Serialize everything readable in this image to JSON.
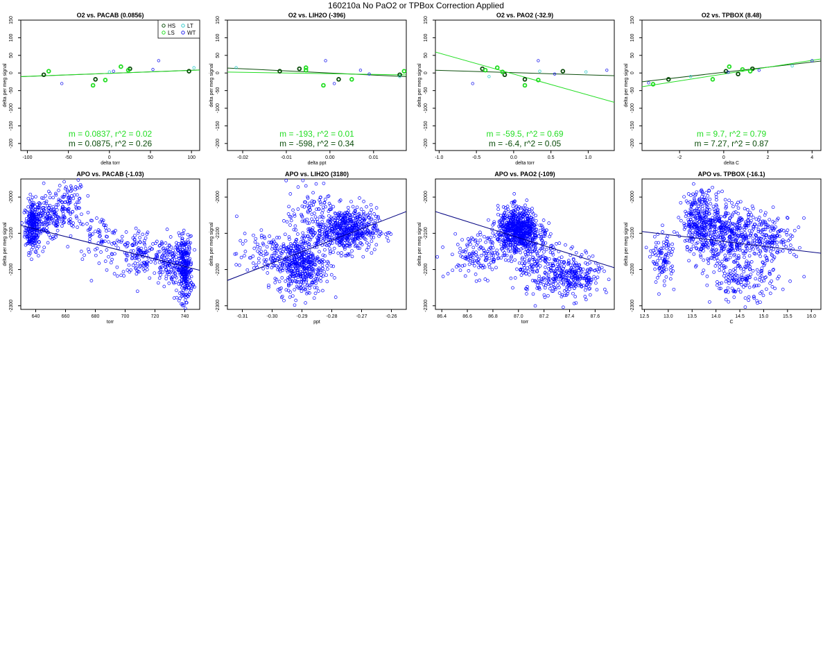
{
  "page_title": "160210a   No PaO2 or TPBox Correction Applied",
  "colors": {
    "HS": "#0b4d0b",
    "LS": "#22dd22",
    "LT": "#33cccc",
    "WT": "#2222ee",
    "fit_overall": "#0b4d0b",
    "fit_ls": "#22dd22",
    "apo_points": "#0000ff",
    "apo_fit": "#000080"
  },
  "legend": [
    {
      "label": "HS",
      "color": "#0b4d0b"
    },
    {
      "label": "LT",
      "color": "#33cccc"
    },
    {
      "label": "LS",
      "color": "#22dd22"
    },
    {
      "label": "WT",
      "color": "#2222ee"
    }
  ],
  "chart_data": [
    {
      "type": "scatter",
      "title": "O2 vs. PACAB (0.0856)",
      "xlabel": "delta torr",
      "ylabel": "delta per meg signal",
      "xlim": [
        -108,
        110
      ],
      "ylim": [
        -220,
        150
      ],
      "xticks": [
        -100,
        -50,
        0,
        50,
        100
      ],
      "yticks": [
        -200,
        -150,
        -100,
        -50,
        0,
        50,
        100,
        150
      ],
      "xtick_labels": [
        "-100",
        "-50",
        "0",
        "50",
        "100"
      ],
      "ytick_labels": [
        "-200",
        "-150",
        "-100",
        "-50",
        "0",
        "50",
        "100",
        "150"
      ],
      "legend_position": "top-right",
      "groups": [
        {
          "name": "HS",
          "points": [
            [
              -80,
              -5
            ],
            [
              -17,
              -18
            ],
            [
              25,
              12
            ],
            [
              97,
              5
            ]
          ]
        },
        {
          "name": "LS",
          "points": [
            [
              -74,
              5
            ],
            [
              -20,
              -35
            ],
            [
              -5,
              -20
            ],
            [
              14,
              18
            ],
            [
              23,
              8
            ]
          ]
        },
        {
          "name": "LT",
          "points": [
            [
              0,
              3
            ],
            [
              103,
              15
            ]
          ]
        },
        {
          "name": "WT",
          "points": [
            [
              -58,
              -30
            ],
            [
              53,
              10
            ],
            [
              60,
              35
            ],
            [
              5,
              5
            ]
          ]
        }
      ],
      "fits": [
        {
          "name": "HS",
          "slope": 0.0875,
          "intercept": -1
        },
        {
          "name": "LS",
          "slope": 0.0837,
          "intercept": -1
        }
      ],
      "annotations": [
        {
          "text": "m = 0.0837, r^2 = 0.02",
          "color": "#22dd22"
        },
        {
          "text": "m = 0.0875, r^2 = 0.26",
          "color": "#0b4d0b"
        }
      ]
    },
    {
      "type": "scatter",
      "title": "O2 vs. LIH2O (-396)",
      "xlabel": "delta ppt",
      "ylabel": "delta per meg signal",
      "xlim": [
        -0.0235,
        0.0175
      ],
      "ylim": [
        -220,
        150
      ],
      "xticks": [
        -0.02,
        -0.01,
        0.0,
        0.01
      ],
      "yticks": [
        -200,
        -150,
        -100,
        -50,
        0,
        50,
        100,
        150
      ],
      "xtick_labels": [
        "-0.02",
        "-0.01",
        "0.00",
        "0.01"
      ],
      "ytick_labels": [
        "-200",
        "-150",
        "-100",
        "-50",
        "0",
        "50",
        "100",
        "150"
      ],
      "groups": [
        {
          "name": "HS",
          "points": [
            [
              -0.0115,
              5
            ],
            [
              -0.007,
              12
            ],
            [
              0.002,
              -18
            ],
            [
              0.016,
              -5
            ]
          ]
        },
        {
          "name": "LS",
          "points": [
            [
              -0.0055,
              15
            ],
            [
              -0.0055,
              8
            ],
            [
              -0.0015,
              -35
            ],
            [
              0.005,
              -18
            ],
            [
              0.017,
              5
            ]
          ]
        },
        {
          "name": "LT",
          "points": [
            [
              -0.0215,
              15
            ],
            [
              0.016,
              -10
            ]
          ]
        },
        {
          "name": "WT",
          "points": [
            [
              -0.001,
              35
            ],
            [
              0.001,
              -30
            ],
            [
              0.007,
              8
            ],
            [
              0.009,
              -3
            ]
          ]
        }
      ],
      "fits": [
        {
          "name": "HS",
          "slope": -598,
          "intercept": 0
        },
        {
          "name": "LS",
          "slope": -193,
          "intercept": -2
        }
      ],
      "annotations": [
        {
          "text": "m = -193, r^2 = 0.01",
          "color": "#22dd22"
        },
        {
          "text": "m = -598, r^2 = 0.34",
          "color": "#0b4d0b"
        }
      ]
    },
    {
      "type": "scatter",
      "title": "O2 vs. PAO2 (-32.9)",
      "xlabel": "delta torr",
      "ylabel": "delta per meg signal",
      "xlim": [
        -1.05,
        1.35
      ],
      "ylim": [
        -220,
        150
      ],
      "xticks": [
        -1.0,
        -0.5,
        0.0,
        0.5,
        1.0
      ],
      "yticks": [
        -200,
        -150,
        -100,
        -50,
        0,
        50,
        100,
        150
      ],
      "xtick_labels": [
        "-1.0",
        "-0.5",
        "0.0",
        "0.5",
        "1.0"
      ],
      "ytick_labels": [
        "-200",
        "-150",
        "-100",
        "-50",
        "0",
        "50",
        "100",
        "150"
      ],
      "groups": [
        {
          "name": "HS",
          "points": [
            [
              -0.42,
              12
            ],
            [
              -0.12,
              -5
            ],
            [
              0.15,
              -18
            ],
            [
              0.66,
              5
            ]
          ]
        },
        {
          "name": "LS",
          "points": [
            [
              -0.38,
              8
            ],
            [
              -0.22,
              15
            ],
            [
              -0.15,
              3
            ],
            [
              0.15,
              -35
            ],
            [
              0.33,
              -20
            ]
          ]
        },
        {
          "name": "LT",
          "points": [
            [
              -0.33,
              -10
            ],
            [
              0.35,
              5
            ],
            [
              0.97,
              3
            ]
          ]
        },
        {
          "name": "WT",
          "points": [
            [
              -0.55,
              -30
            ],
            [
              0.33,
              35
            ],
            [
              0.55,
              -3
            ],
            [
              1.25,
              8
            ]
          ]
        }
      ],
      "fits": [
        {
          "name": "HS",
          "slope": -6.4,
          "intercept": 1
        },
        {
          "name": "LS",
          "slope": -59.5,
          "intercept": -3
        }
      ],
      "annotations": [
        {
          "text": "m = -59.5, r^2 = 0.69",
          "color": "#22dd22"
        },
        {
          "text": "m = -6.4, r^2 = 0.05",
          "color": "#0b4d0b"
        }
      ]
    },
    {
      "type": "scatter",
      "title": "O2 vs. TPBOX (8.48)",
      "xlabel": "delta C",
      "ylabel": "delta per meg signal",
      "xlim": [
        -3.7,
        4.4
      ],
      "ylim": [
        -220,
        150
      ],
      "xticks": [
        -2,
        0,
        2,
        4
      ],
      "yticks": [
        -200,
        -150,
        -100,
        -50,
        0,
        50,
        100,
        150
      ],
      "xtick_labels": [
        "-2",
        "0",
        "2",
        "4"
      ],
      "ytick_labels": [
        "-200",
        "-150",
        "-100",
        "-50",
        "0",
        "50",
        "100",
        "150"
      ],
      "groups": [
        {
          "name": "HS",
          "points": [
            [
              -2.5,
              -18
            ],
            [
              0.1,
              5
            ],
            [
              0.65,
              -3
            ],
            [
              1.3,
              12
            ]
          ]
        },
        {
          "name": "LS",
          "points": [
            [
              -3.2,
              -32
            ],
            [
              -0.5,
              -18
            ],
            [
              0.25,
              18
            ],
            [
              0.85,
              10
            ],
            [
              1.2,
              5
            ]
          ]
        },
        {
          "name": "LT",
          "points": [
            [
              -1.5,
              -10
            ],
            [
              3.1,
              20
            ]
          ]
        },
        {
          "name": "WT",
          "points": [
            [
              -3.4,
              -28
            ],
            [
              1.6,
              8
            ],
            [
              4.0,
              35
            ],
            [
              0.2,
              2
            ]
          ]
        }
      ],
      "fits": [
        {
          "name": "HS",
          "slope": 7.27,
          "intercept": 2
        },
        {
          "name": "LS",
          "slope": 9.7,
          "intercept": -3
        }
      ],
      "annotations": [
        {
          "text": "m = 9.7, r^2 = 0.79",
          "color": "#22dd22"
        },
        {
          "text": "m = 7.27, r^2 = 0.87",
          "color": "#0b4d0b"
        }
      ]
    },
    {
      "type": "scatter",
      "title": "APO vs. PACAB (-1.03)",
      "xlabel": "torr",
      "ylabel": "delta per meg signal",
      "xlim": [
        630,
        750
      ],
      "ylim": [
        -2310,
        -1950
      ],
      "xticks": [
        640,
        660,
        680,
        700,
        720,
        740
      ],
      "yticks": [
        -2300,
        -2200,
        -2100,
        -2000
      ],
      "xtick_labels": [
        "640",
        "660",
        "680",
        "700",
        "720",
        "740"
      ],
      "ytick_labels": [
        "-2300",
        "-2200",
        "-2100",
        "-2000"
      ],
      "point_clusters": [
        {
          "cx": 638,
          "cy": -2080,
          "sx": 2.5,
          "sy": 35,
          "n": 260
        },
        {
          "cx": 648,
          "cy": -2060,
          "sx": 6,
          "sy": 30,
          "n": 140
        },
        {
          "cx": 663,
          "cy": -2020,
          "sx": 5,
          "sy": 35,
          "n": 100
        },
        {
          "cx": 682,
          "cy": -2110,
          "sx": 8,
          "sy": 30,
          "n": 70
        },
        {
          "cx": 710,
          "cy": -2160,
          "sx": 9,
          "sy": 35,
          "n": 150
        },
        {
          "cx": 728,
          "cy": -2180,
          "sx": 4,
          "sy": 30,
          "n": 110
        },
        {
          "cx": 740,
          "cy": -2200,
          "sx": 2.5,
          "sy": 45,
          "n": 300
        }
      ],
      "fit": {
        "x": [
          630,
          750
        ],
        "y": [
          -2078,
          -2202
        ]
      }
    },
    {
      "type": "scatter",
      "title": "APO vs. LIH2O (3180)",
      "xlabel": "ppt",
      "ylabel": "delta per meg signal",
      "xlim": [
        -0.315,
        -0.255
      ],
      "ylim": [
        -2310,
        -1950
      ],
      "xticks": [
        -0.31,
        -0.3,
        -0.29,
        -0.28,
        -0.27,
        -0.26
      ],
      "yticks": [
        -2300,
        -2200,
        -2100,
        -2000
      ],
      "xtick_labels": [
        "-0.31",
        "-0.30",
        "-0.29",
        "-0.28",
        "-0.27",
        "-0.26"
      ],
      "ytick_labels": [
        "-2300",
        "-2200",
        "-2100",
        "-2000"
      ],
      "point_clusters": [
        {
          "cx": -0.275,
          "cy": -2090,
          "sx": 0.005,
          "sy": 30,
          "n": 550
        },
        {
          "cx": -0.29,
          "cy": -2190,
          "sx": 0.004,
          "sy": 40,
          "n": 400
        },
        {
          "cx": -0.3,
          "cy": -2160,
          "sx": 0.006,
          "sy": 30,
          "n": 150
        },
        {
          "cx": -0.287,
          "cy": -2060,
          "sx": 0.004,
          "sy": 50,
          "n": 120
        }
      ],
      "fit": {
        "x": [
          -0.315,
          -0.255
        ],
        "y": [
          -2230,
          -2040
        ]
      }
    },
    {
      "type": "scatter",
      "title": "APO vs. PAO2 (-109)",
      "xlabel": "torr",
      "ylabel": "delta per meg signal",
      "xlim": [
        86.35,
        87.75
      ],
      "ylim": [
        -2310,
        -1950
      ],
      "xticks": [
        86.4,
        86.6,
        86.8,
        87.0,
        87.2,
        87.4,
        87.6
      ],
      "yticks": [
        -2300,
        -2200,
        -2100,
        -2000
      ],
      "xtick_labels": [
        "86.4",
        "86.6",
        "86.8",
        "87.0",
        "87.2",
        "87.4",
        "87.6"
      ],
      "ytick_labels": [
        "-2300",
        "-2200",
        "-2100",
        "-2000"
      ],
      "point_clusters": [
        {
          "cx": 87.0,
          "cy": -2090,
          "sx": 0.08,
          "sy": 30,
          "n": 700
        },
        {
          "cx": 86.7,
          "cy": -2160,
          "sx": 0.12,
          "sy": 30,
          "n": 150
        },
        {
          "cx": 87.4,
          "cy": -2220,
          "sx": 0.12,
          "sy": 30,
          "n": 300
        },
        {
          "cx": 87.15,
          "cy": -2180,
          "sx": 0.1,
          "sy": 40,
          "n": 150
        }
      ],
      "fit": {
        "x": [
          86.35,
          87.75
        ],
        "y": [
          -2040,
          -2195
        ]
      }
    },
    {
      "type": "scatter",
      "title": "APO vs. TPBOX (-16.1)",
      "xlabel": "C",
      "ylabel": "delta per meg signal",
      "xlim": [
        12.45,
        16.2
      ],
      "ylim": [
        -2310,
        -1950
      ],
      "xticks": [
        12.5,
        13.0,
        13.5,
        14.0,
        14.5,
        15.0,
        15.5,
        16.0
      ],
      "yticks": [
        -2300,
        -2200,
        -2100,
        -2000
      ],
      "xtick_labels": [
        "12.5",
        "13.0",
        "13.5",
        "14.0",
        "14.5",
        "15.0",
        "15.5",
        "16.0"
      ],
      "ytick_labels": [
        "-2300",
        "-2200",
        "-2100",
        "-2000"
      ],
      "point_clusters": [
        {
          "cx": 13.7,
          "cy": -2070,
          "sx": 0.2,
          "sy": 45,
          "n": 350
        },
        {
          "cx": 14.3,
          "cy": -2110,
          "sx": 0.3,
          "sy": 45,
          "n": 350
        },
        {
          "cx": 15.1,
          "cy": -2110,
          "sx": 0.3,
          "sy": 30,
          "n": 180
        },
        {
          "cx": 12.9,
          "cy": -2170,
          "sx": 0.12,
          "sy": 35,
          "n": 100
        },
        {
          "cx": 14.6,
          "cy": -2230,
          "sx": 0.35,
          "sy": 30,
          "n": 150
        }
      ],
      "fit": {
        "x": [
          12.45,
          16.2
        ],
        "y": [
          -2095,
          -2155
        ]
      }
    }
  ]
}
